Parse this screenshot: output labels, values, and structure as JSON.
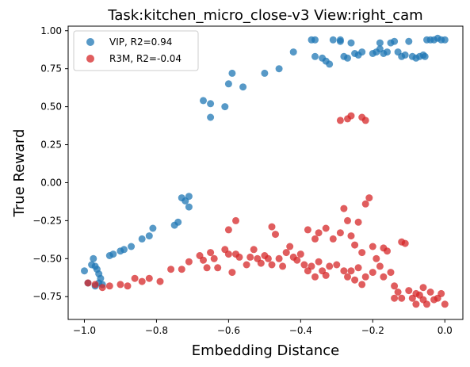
{
  "chart_data": {
    "type": "scatter",
    "title": "Task:kitchen_micro_close-v3 View:right_cam",
    "xlabel": "Embedding Distance",
    "ylabel": "True Reward",
    "xlim": [
      -1.045,
      0.05
    ],
    "ylim": [
      -0.9,
      1.03
    ],
    "x_ticks": [
      -1.0,
      -0.8,
      -0.6,
      -0.4,
      -0.2,
      0.0
    ],
    "x_tick_labels": [
      "−1.0",
      "−0.8",
      "−0.6",
      "−0.4",
      "−0.2",
      "0.0"
    ],
    "y_ticks": [
      -0.75,
      -0.5,
      -0.25,
      0.0,
      0.25,
      0.5,
      0.75,
      1.0
    ],
    "y_tick_labels": [
      "−0.75",
      "−0.50",
      "−0.25",
      "0.00",
      "0.25",
      "0.50",
      "0.75",
      "1.00"
    ],
    "grid": false,
    "legend_position": "upper-left",
    "series": [
      {
        "name": "VIP, R2=0.94",
        "color": "#1f77b4",
        "points": [
          [
            -1.0,
            -0.58
          ],
          [
            -0.99,
            -0.66
          ],
          [
            -0.98,
            -0.54
          ],
          [
            -0.975,
            -0.5
          ],
          [
            -0.97,
            -0.55
          ],
          [
            -0.97,
            -0.68
          ],
          [
            -0.965,
            -0.57
          ],
          [
            -0.96,
            -0.6
          ],
          [
            -0.96,
            -0.66
          ],
          [
            -0.955,
            -0.63
          ],
          [
            -0.95,
            -0.67
          ],
          [
            -0.93,
            -0.48
          ],
          [
            -0.92,
            -0.47
          ],
          [
            -0.9,
            -0.45
          ],
          [
            -0.89,
            -0.44
          ],
          [
            -0.87,
            -0.42
          ],
          [
            -0.84,
            -0.37
          ],
          [
            -0.82,
            -0.35
          ],
          [
            -0.81,
            -0.3
          ],
          [
            -0.75,
            -0.28
          ],
          [
            -0.74,
            -0.26
          ],
          [
            -0.73,
            -0.1
          ],
          [
            -0.72,
            -0.12
          ],
          [
            -0.71,
            -0.09
          ],
          [
            -0.71,
            -0.16
          ],
          [
            -0.67,
            0.54
          ],
          [
            -0.65,
            0.52
          ],
          [
            -0.65,
            0.43
          ],
          [
            -0.61,
            0.5
          ],
          [
            -0.6,
            0.65
          ],
          [
            -0.59,
            0.72
          ],
          [
            -0.56,
            0.63
          ],
          [
            -0.5,
            0.72
          ],
          [
            -0.46,
            0.75
          ],
          [
            -0.42,
            0.86
          ],
          [
            -0.37,
            0.94
          ],
          [
            -0.36,
            0.94
          ],
          [
            -0.36,
            0.83
          ],
          [
            -0.34,
            0.82
          ],
          [
            -0.33,
            0.8
          ],
          [
            -0.32,
            0.78
          ],
          [
            -0.31,
            0.94
          ],
          [
            -0.29,
            0.94
          ],
          [
            -0.29,
            0.93
          ],
          [
            -0.28,
            0.83
          ],
          [
            -0.27,
            0.82
          ],
          [
            -0.26,
            0.92
          ],
          [
            -0.25,
            0.85
          ],
          [
            -0.24,
            0.84
          ],
          [
            -0.23,
            0.86
          ],
          [
            -0.2,
            0.85
          ],
          [
            -0.19,
            0.86
          ],
          [
            -0.18,
            0.92
          ],
          [
            -0.18,
            0.88
          ],
          [
            -0.17,
            0.85
          ],
          [
            -0.16,
            0.86
          ],
          [
            -0.15,
            0.92
          ],
          [
            -0.14,
            0.93
          ],
          [
            -0.13,
            0.86
          ],
          [
            -0.12,
            0.83
          ],
          [
            -0.11,
            0.84
          ],
          [
            -0.1,
            0.93
          ],
          [
            -0.09,
            0.83
          ],
          [
            -0.08,
            0.82
          ],
          [
            -0.07,
            0.83
          ],
          [
            -0.06,
            0.84
          ],
          [
            -0.055,
            0.83
          ],
          [
            -0.05,
            0.94
          ],
          [
            -0.04,
            0.94
          ],
          [
            -0.03,
            0.94
          ],
          [
            -0.02,
            0.95
          ],
          [
            -0.01,
            0.94
          ],
          [
            0.0,
            0.94
          ]
        ]
      },
      {
        "name": "R3M, R2=-0.04",
        "color": "#d62728",
        "points": [
          [
            -0.99,
            -0.66
          ],
          [
            -0.97,
            -0.67
          ],
          [
            -0.95,
            -0.69
          ],
          [
            -0.93,
            -0.68
          ],
          [
            -0.9,
            -0.67
          ],
          [
            -0.88,
            -0.68
          ],
          [
            -0.86,
            -0.63
          ],
          [
            -0.84,
            -0.65
          ],
          [
            -0.82,
            -0.63
          ],
          [
            -0.79,
            -0.65
          ],
          [
            -0.76,
            -0.57
          ],
          [
            -0.73,
            -0.57
          ],
          [
            -0.71,
            -0.52
          ],
          [
            -0.68,
            -0.48
          ],
          [
            -0.67,
            -0.51
          ],
          [
            -0.66,
            -0.56
          ],
          [
            -0.65,
            -0.46
          ],
          [
            -0.64,
            -0.5
          ],
          [
            -0.63,
            -0.56
          ],
          [
            -0.61,
            -0.44
          ],
          [
            -0.6,
            -0.47
          ],
          [
            -0.6,
            -0.31
          ],
          [
            -0.59,
            -0.59
          ],
          [
            -0.58,
            -0.25
          ],
          [
            -0.58,
            -0.47
          ],
          [
            -0.57,
            -0.49
          ],
          [
            -0.55,
            -0.54
          ],
          [
            -0.54,
            -0.49
          ],
          [
            -0.53,
            -0.44
          ],
          [
            -0.52,
            -0.5
          ],
          [
            -0.51,
            -0.53
          ],
          [
            -0.5,
            -0.48
          ],
          [
            -0.49,
            -0.5
          ],
          [
            -0.48,
            -0.29
          ],
          [
            -0.48,
            -0.54
          ],
          [
            -0.47,
            -0.34
          ],
          [
            -0.46,
            -0.5
          ],
          [
            -0.45,
            -0.55
          ],
          [
            -0.44,
            -0.46
          ],
          [
            -0.43,
            -0.42
          ],
          [
            -0.42,
            -0.49
          ],
          [
            -0.41,
            -0.51
          ],
          [
            -0.4,
            -0.47
          ],
          [
            -0.39,
            -0.54
          ],
          [
            -0.38,
            -0.31
          ],
          [
            -0.38,
            -0.58
          ],
          [
            -0.37,
            -0.55
          ],
          [
            -0.36,
            -0.37
          ],
          [
            -0.36,
            -0.62
          ],
          [
            -0.35,
            -0.33
          ],
          [
            -0.35,
            -0.52
          ],
          [
            -0.34,
            -0.58
          ],
          [
            -0.33,
            -0.3
          ],
          [
            -0.33,
            -0.61
          ],
          [
            -0.32,
            -0.55
          ],
          [
            -0.31,
            -0.37
          ],
          [
            -0.3,
            -0.54
          ],
          [
            -0.29,
            -0.33
          ],
          [
            -0.28,
            -0.17
          ],
          [
            -0.28,
            -0.58
          ],
          [
            -0.27,
            -0.25
          ],
          [
            -0.27,
            -0.62
          ],
          [
            -0.26,
            -0.35
          ],
          [
            -0.26,
            -0.58
          ],
          [
            -0.25,
            -0.41
          ],
          [
            -0.25,
            -0.64
          ],
          [
            -0.24,
            -0.26
          ],
          [
            -0.24,
            -0.56
          ],
          [
            -0.23,
            -0.46
          ],
          [
            -0.23,
            -0.67
          ],
          [
            -0.22,
            -0.14
          ],
          [
            -0.22,
            -0.62
          ],
          [
            -0.21,
            -0.1
          ],
          [
            -0.2,
            -0.59
          ],
          [
            -0.2,
            -0.42
          ],
          [
            -0.19,
            -0.5
          ],
          [
            -0.18,
            -0.55
          ],
          [
            -0.17,
            -0.43
          ],
          [
            -0.17,
            -0.62
          ],
          [
            -0.16,
            -0.45
          ],
          [
            -0.15,
            -0.59
          ],
          [
            -0.14,
            -0.68
          ],
          [
            -0.14,
            -0.76
          ],
          [
            -0.13,
            -0.72
          ],
          [
            -0.12,
            -0.39
          ],
          [
            -0.12,
            -0.76
          ],
          [
            -0.11,
            -0.4
          ],
          [
            -0.1,
            -0.71
          ],
          [
            -0.09,
            -0.76
          ],
          [
            -0.08,
            -0.8
          ],
          [
            -0.08,
            -0.73
          ],
          [
            -0.07,
            -0.74
          ],
          [
            -0.06,
            -0.77
          ],
          [
            -0.06,
            -0.69
          ],
          [
            -0.05,
            -0.8
          ],
          [
            -0.04,
            -0.72
          ],
          [
            -0.03,
            -0.77
          ],
          [
            -0.02,
            -0.76
          ],
          [
            -0.01,
            -0.73
          ],
          [
            0.0,
            -0.8
          ],
          [
            -0.29,
            0.41
          ],
          [
            -0.27,
            0.42
          ],
          [
            -0.26,
            0.44
          ],
          [
            -0.23,
            0.43
          ],
          [
            -0.22,
            0.41
          ]
        ]
      }
    ]
  }
}
